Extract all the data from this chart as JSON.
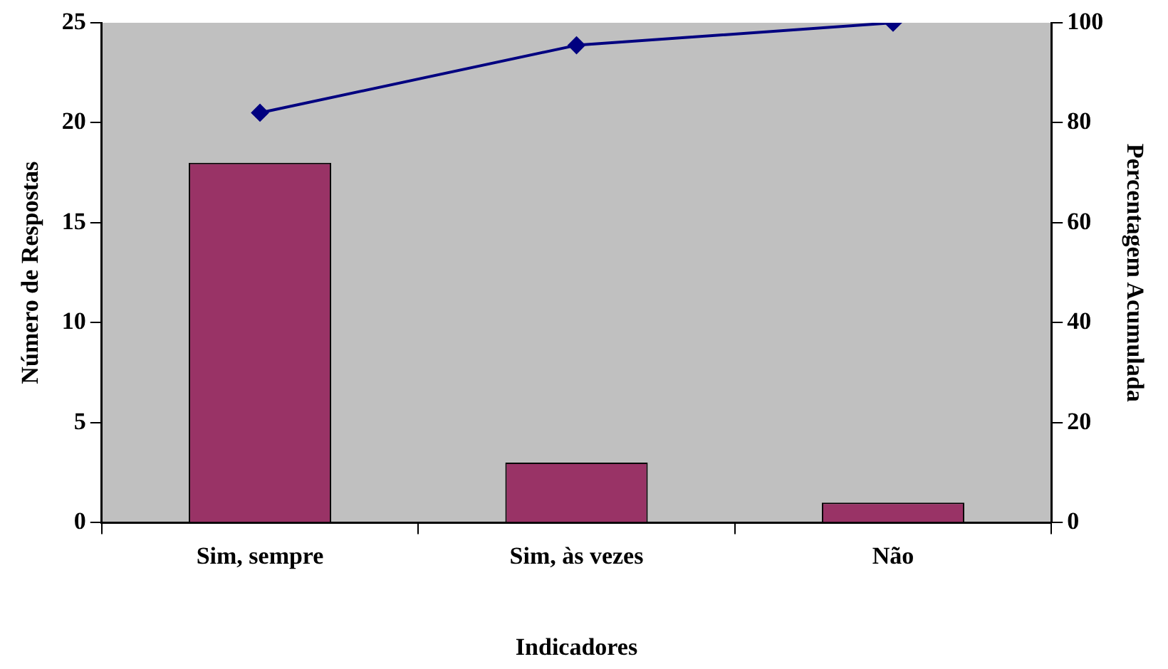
{
  "chart_data": {
    "type": "bar",
    "xlabel": "Indicadores",
    "ylabel": "Número de Respostas",
    "y2label": "Percentagem Acumulada",
    "categories": [
      "Sim, sempre",
      "Sim, às vezes",
      "Não"
    ],
    "series": [
      {
        "color": "#993366",
        "values": [
          18,
          3,
          1
        ]
      },
      {
        "type": "line",
        "axis": "y2",
        "color": "#000080",
        "values": [
          82,
          95.5,
          100
        ],
        "marker": "diamond"
      }
    ],
    "ylim": [
      0,
      25
    ],
    "yticks": [
      0,
      5,
      10,
      15,
      20,
      25
    ],
    "y2lim": [
      0,
      100
    ],
    "y2ticks": [
      0,
      20,
      40,
      60,
      80,
      100
    ],
    "grid": false,
    "legend": false
  }
}
